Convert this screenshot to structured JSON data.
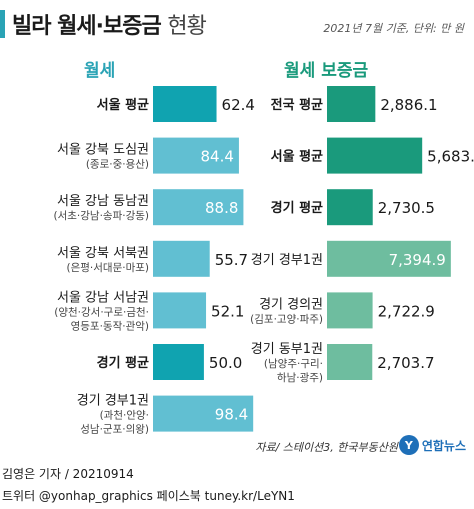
{
  "header": {
    "title_bold": "빌라 월세·보증금",
    "title_light": "현황",
    "note": "2021년 7월 기준, 단위: 만 원"
  },
  "panels": {
    "left_title": "월세",
    "right_title": "월세 보증금"
  },
  "colors": {
    "accent_teal": "#2aa3b5",
    "highlight_teal": "#10a3b0",
    "light_teal": "#61bfd2",
    "dark_green": "#1a9a7c",
    "mid_green": "#6ebd9f",
    "logo_blue": "#1e6fb8"
  },
  "chart_data": [
    {
      "type": "bar",
      "orientation": "horizontal",
      "title": "월세",
      "categories": [
        {
          "name": "서울 평균",
          "sub": "",
          "bold": true
        },
        {
          "name": "서울 강북 도심권",
          "sub": "(종로·중·용산)",
          "bold": false
        },
        {
          "name": "서울 강남 동남권",
          "sub": "(서초·강남·송파·강동)",
          "bold": false
        },
        {
          "name": "서울 강북 서북권",
          "sub": "(은평·서대문·마포)",
          "bold": false
        },
        {
          "name": "서울 강남 서남권",
          "sub": "(양천·강서·구로·금천·|영등포·동작·관악)",
          "bold": false
        },
        {
          "name": "경기 평균",
          "sub": "",
          "bold": true
        },
        {
          "name": "경기 경부1권",
          "sub": "(과천·안양·|성남·군포·의왕)",
          "bold": false
        }
      ],
      "values": [
        62.4,
        84.4,
        88.8,
        55.7,
        52.1,
        50.0,
        98.4
      ],
      "labels": [
        "62.4",
        "84.4",
        "88.8",
        "55.7",
        "52.1",
        "50.0",
        "98.4"
      ],
      "highlight": [
        true,
        false,
        false,
        false,
        false,
        true,
        false
      ],
      "xlim": [
        0,
        110
      ]
    },
    {
      "type": "bar",
      "orientation": "horizontal",
      "title": "월세 보증금",
      "categories": [
        {
          "name": "전국 평균",
          "sub": "",
          "bold": true
        },
        {
          "name": "서울 평균",
          "sub": "",
          "bold": true
        },
        {
          "name": "경기 평균",
          "sub": "",
          "bold": true
        },
        {
          "name": "경기 경부1권",
          "sub": "",
          "bold": false
        },
        {
          "name": "경기 경의권",
          "sub": "(김포·고양·파주)",
          "bold": false
        },
        {
          "name": "경기 동부1권",
          "sub": "(남양주·구리·|하남·광주)",
          "bold": false
        }
      ],
      "values": [
        2886.1,
        5683.7,
        2730.5,
        7394.9,
        2722.9,
        2703.7
      ],
      "labels": [
        "2,886.1",
        "5,683.7",
        "2,730.5",
        "7,394.9",
        "2,722.9",
        "2,703.7"
      ],
      "highlight": [
        true,
        true,
        true,
        false,
        false,
        false
      ],
      "xlim": [
        0,
        8300
      ]
    }
  ],
  "footer": {
    "source": "자료/ 스테이션3, 한국부동산원",
    "logo_mark": "Y",
    "logo_text": "연합뉴스",
    "credit": "김영은 기자 / 20210914",
    "social": "트위터 @yonhap_graphics  페이스북 tuney.kr/LeYN1"
  }
}
